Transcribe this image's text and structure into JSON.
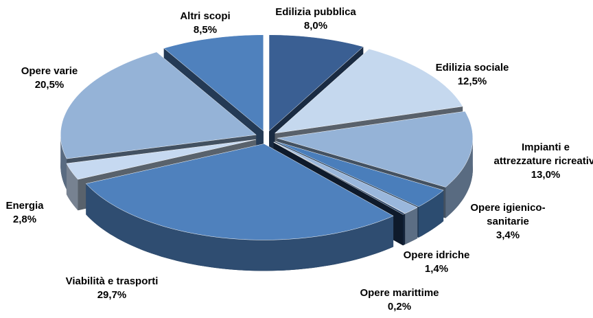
{
  "chart_data": {
    "type": "pie",
    "three_d": true,
    "categories": [
      "Edilizia pubblica",
      "Edilizia sociale",
      "Impianti e attrezzature ricreative",
      "Opere igienico-sanitarie",
      "Opere idriche",
      "Opere marittime",
      "Viabilità e trasporti",
      "Energia",
      "Opere varie",
      "Altri scopi"
    ],
    "values": [
      8.0,
      12.5,
      13.0,
      3.4,
      1.4,
      0.2,
      29.7,
      2.8,
      20.5,
      8.5
    ],
    "value_labels": [
      "8,0%",
      "12,5%",
      "13,0%",
      "3,4%",
      "1,4%",
      "0,2%",
      "29,7%",
      "2,8%",
      "20,5%",
      "8,5%"
    ],
    "colors": [
      "#3a5f93",
      "#c5d8ee",
      "#95b3d7",
      "#4a7ebb",
      "#9ab7dc",
      "#1f3a60",
      "#4f81bd",
      "#c6d9f1",
      "#95b3d7",
      "#4f81bd"
    ]
  }
}
